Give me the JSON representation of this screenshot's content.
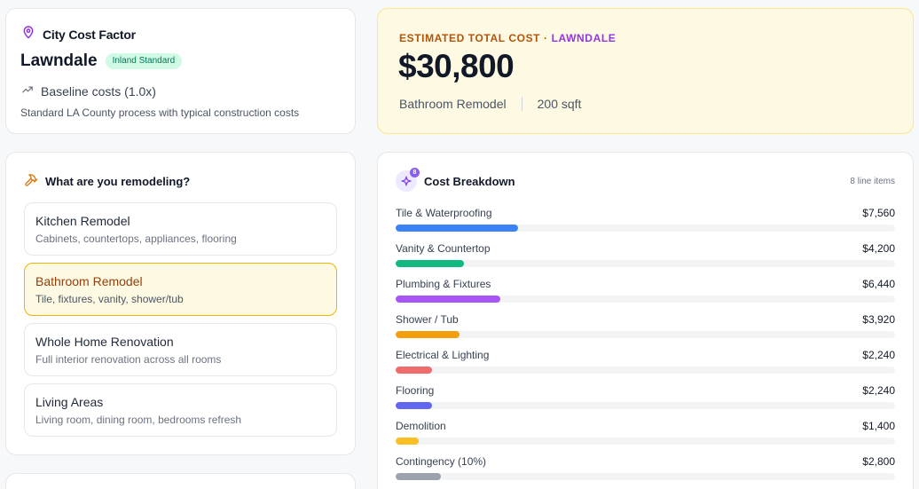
{
  "city": {
    "header": "City Cost Factor",
    "name": "Lawndale",
    "badge": "Inland Standard",
    "baseline": "Baseline costs (1.0x)",
    "description": "Standard LA County process with typical construction costs"
  },
  "estimate": {
    "label_prefix": "ESTIMATED TOTAL COST · ",
    "label_city": "LAWNDALE",
    "total": "$30,800",
    "project": "Bathroom Remodel",
    "area": "200 sqft"
  },
  "remodel": {
    "header": "What are you remodeling?",
    "options": [
      {
        "title": "Kitchen Remodel",
        "desc": "Cabinets, countertops, appliances, flooring"
      },
      {
        "title": "Bathroom Remodel",
        "desc": "Tile, fixtures, vanity, shower/tub"
      },
      {
        "title": "Whole Home Renovation",
        "desc": "Full interior renovation across all rooms"
      },
      {
        "title": "Living Areas",
        "desc": "Living room, dining room, bedrooms refresh"
      }
    ],
    "selected_index": 1
  },
  "breakdown": {
    "header": "Cost Breakdown",
    "icon_badge": "8",
    "count": "8 line items",
    "total_value": 30800,
    "items": [
      {
        "name": "Tile & Waterproofing",
        "amount": "$7,560",
        "value": 7560,
        "color": "#3b82f6"
      },
      {
        "name": "Vanity & Countertop",
        "amount": "$4,200",
        "value": 4200,
        "color": "#10b981"
      },
      {
        "name": "Plumbing & Fixtures",
        "amount": "$6,440",
        "value": 6440,
        "color": "#a855f7"
      },
      {
        "name": "Shower / Tub",
        "amount": "$3,920",
        "value": 3920,
        "color": "#f59e0b"
      },
      {
        "name": "Electrical & Lighting",
        "amount": "$2,240",
        "value": 2240,
        "color": "#f06c6c"
      },
      {
        "name": "Flooring",
        "amount": "$2,240",
        "value": 2240,
        "color": "#6366f1"
      },
      {
        "name": "Demolition",
        "amount": "$1,400",
        "value": 1400,
        "color": "#fbbf24"
      },
      {
        "name": "Contingency (10%)",
        "amount": "$2,800",
        "value": 2800,
        "color": "#9ca3af"
      }
    ]
  }
}
